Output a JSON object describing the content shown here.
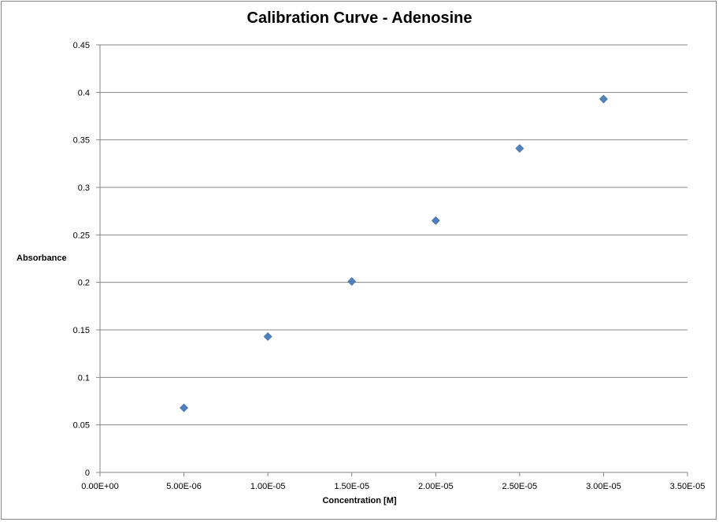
{
  "chart_data": {
    "type": "scatter",
    "title": "Calibration Curve - Adenosine",
    "xlabel": "Concentration [M]",
    "ylabel": "Absorbance",
    "xlim": [
      0,
      3.5e-05
    ],
    "ylim": [
      0,
      0.45
    ],
    "x_ticks": [
      "0.00E+00",
      "5.00E-06",
      "1.00E-05",
      "1.50E-05",
      "2.00E-05",
      "2.50E-05",
      "3.00E-05",
      "3.50E-05"
    ],
    "y_ticks": [
      "0",
      "0.05",
      "0.1",
      "0.15",
      "0.2",
      "0.25",
      "0.3",
      "0.35",
      "0.4",
      "0.45"
    ],
    "grid": "horizontal",
    "marker": "diamond",
    "marker_color": "#4f81bd",
    "series": [
      {
        "x": [
          5e-06,
          1e-05,
          1.5e-05,
          2e-05,
          2.5e-05,
          3e-05
        ],
        "y": [
          0.068,
          0.143,
          0.201,
          0.265,
          0.341,
          0.393
        ]
      }
    ]
  }
}
